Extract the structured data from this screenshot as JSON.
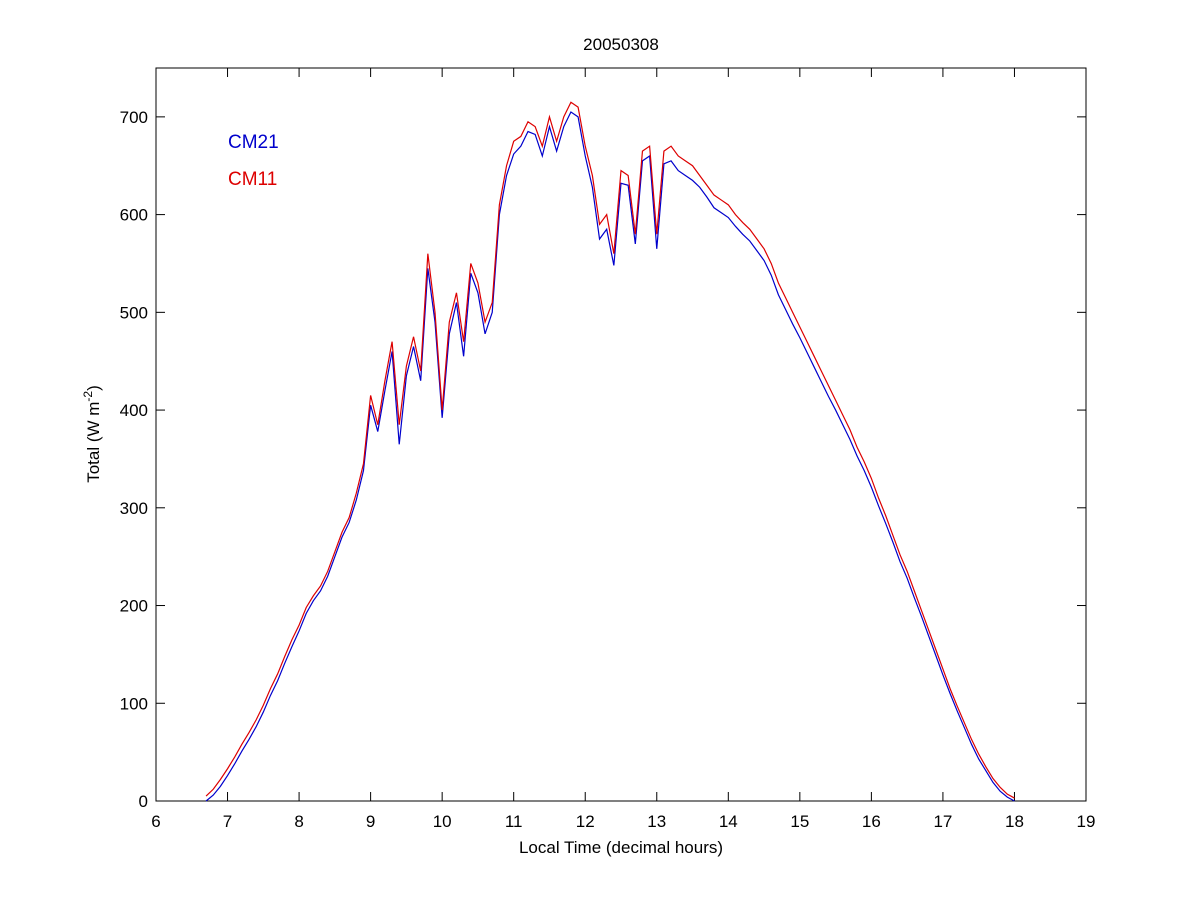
{
  "chart_data": {
    "type": "line",
    "title": "20050308",
    "xlabel": "Local Time (decimal hours)",
    "ylabel": [
      "Total (W m",
      "-2",
      ")"
    ],
    "xlim": [
      6,
      19
    ],
    "ylim": [
      0,
      750
    ],
    "xticks": [
      6,
      7,
      8,
      9,
      10,
      11,
      12,
      13,
      14,
      15,
      16,
      17,
      18,
      19
    ],
    "yticks": [
      0,
      100,
      200,
      300,
      400,
      500,
      600,
      700
    ],
    "legend": "upper left",
    "x": [
      6.7,
      6.8,
      6.9,
      7.0,
      7.1,
      7.2,
      7.3,
      7.4,
      7.5,
      7.6,
      7.7,
      7.8,
      7.9,
      8.0,
      8.1,
      8.2,
      8.3,
      8.4,
      8.5,
      8.6,
      8.7,
      8.8,
      8.9,
      9.0,
      9.1,
      9.2,
      9.3,
      9.4,
      9.5,
      9.6,
      9.7,
      9.8,
      9.9,
      10.0,
      10.1,
      10.2,
      10.3,
      10.4,
      10.5,
      10.6,
      10.7,
      10.8,
      10.9,
      11.0,
      11.1,
      11.2,
      11.3,
      11.4,
      11.5,
      11.6,
      11.7,
      11.8,
      11.9,
      12.0,
      12.1,
      12.2,
      12.3,
      12.4,
      12.5,
      12.6,
      12.7,
      12.8,
      12.9,
      13.0,
      13.1,
      13.2,
      13.3,
      13.4,
      13.5,
      13.6,
      13.7,
      13.8,
      13.9,
      14.0,
      14.1,
      14.2,
      14.3,
      14.4,
      14.5,
      14.6,
      14.7,
      14.8,
      14.9,
      15.0,
      15.1,
      15.2,
      15.3,
      15.4,
      15.5,
      15.6,
      15.7,
      15.8,
      15.9,
      16.0,
      16.1,
      16.2,
      16.3,
      16.4,
      16.5,
      16.6,
      16.7,
      16.8,
      16.9,
      17.0,
      17.1,
      17.2,
      17.3,
      17.4,
      17.5,
      17.6,
      17.7,
      17.8,
      17.9,
      18.0
    ],
    "series": [
      {
        "name": "CM21",
        "color": "#0000cc",
        "values": [
          0,
          6,
          15,
          26,
          38,
          51,
          63,
          76,
          91,
          108,
          123,
          141,
          158,
          174,
          192,
          205,
          215,
          230,
          250,
          270,
          285,
          308,
          338,
          405,
          378,
          420,
          460,
          365,
          435,
          465,
          430,
          545,
          490,
          392,
          478,
          510,
          455,
          540,
          520,
          478,
          500,
          600,
          640,
          662,
          670,
          685,
          682,
          660,
          690,
          665,
          690,
          705,
          700,
          660,
          628,
          575,
          585,
          548,
          632,
          630,
          570,
          655,
          660,
          565,
          652,
          655,
          645,
          640,
          635,
          628,
          618,
          607,
          602,
          597,
          588,
          580,
          573,
          563,
          553,
          538,
          518,
          503,
          488,
          474,
          459,
          444,
          429,
          414,
          400,
          385,
          370,
          353,
          338,
          321,
          302,
          284,
          265,
          245,
          228,
          208,
          189,
          169,
          149,
          129,
          110,
          92,
          75,
          58,
          43,
          31,
          19,
          10,
          4,
          0
        ]
      },
      {
        "name": "CM11",
        "color": "#dd0000",
        "values": [
          5,
          12,
          22,
          33,
          45,
          58,
          70,
          83,
          98,
          115,
          130,
          148,
          165,
          180,
          198,
          210,
          220,
          235,
          255,
          275,
          290,
          315,
          345,
          415,
          385,
          430,
          470,
          385,
          445,
          475,
          440,
          560,
          500,
          400,
          490,
          520,
          470,
          550,
          530,
          490,
          510,
          610,
          650,
          675,
          680,
          695,
          690,
          670,
          700,
          675,
          700,
          715,
          710,
          670,
          640,
          590,
          600,
          560,
          645,
          640,
          580,
          665,
          670,
          580,
          665,
          670,
          660,
          655,
          650,
          640,
          630,
          620,
          615,
          610,
          600,
          592,
          585,
          575,
          565,
          550,
          530,
          515,
          500,
          485,
          470,
          455,
          440,
          425,
          410,
          395,
          380,
          362,
          347,
          330,
          310,
          292,
          272,
          252,
          235,
          215,
          195,
          175,
          155,
          135,
          115,
          97,
          80,
          63,
          48,
          35,
          23,
          14,
          7,
          3
        ]
      }
    ]
  }
}
